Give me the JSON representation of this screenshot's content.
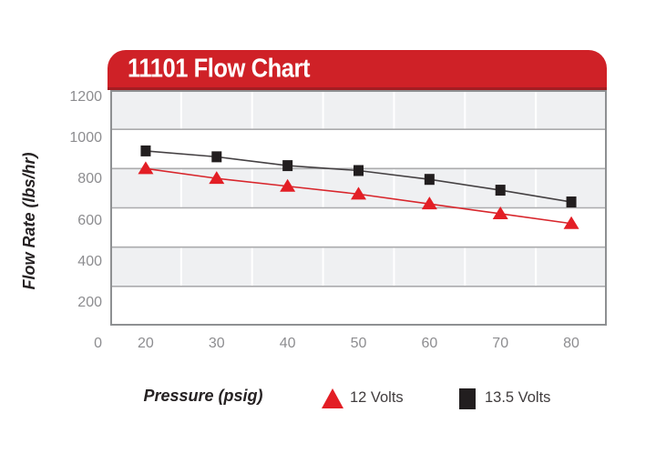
{
  "title_banner": {
    "text": "11101 Flow Chart",
    "bg_color": "#cf2127",
    "text_color": "#ffffff"
  },
  "legend": {
    "items": [
      {
        "label": "12 Volts",
        "marker": "triangle",
        "color": "#e31e25"
      },
      {
        "label": "13.5 Volts",
        "marker": "square",
        "color": "#221e1f"
      }
    ]
  },
  "chart_data": {
    "type": "line",
    "title": "11101 Flow Chart",
    "xlabel": "Pressure (psig)",
    "ylabel": "Flow Rate (lbs/hr)",
    "categories": [
      20,
      30,
      40,
      50,
      60,
      70,
      80
    ],
    "series": [
      {
        "name": "13.5 Volts",
        "marker": "square",
        "marker_color": "#221e1f",
        "line_color": "#454143",
        "values": [
          890,
          860,
          815,
          790,
          745,
          690,
          630
        ]
      },
      {
        "name": "12 Volts",
        "marker": "triangle",
        "marker_color": "#e31e25",
        "line_color": "#d8262c",
        "values": [
          800,
          750,
          710,
          670,
          620,
          570,
          520
        ]
      }
    ],
    "ylim": [
      0,
      1200
    ],
    "yticks": [
      0,
      200,
      400,
      600,
      800,
      1000,
      1200
    ],
    "xticks": [
      20,
      30,
      40,
      50,
      60,
      70,
      80
    ],
    "grid": {
      "h_gridline_interval": 200,
      "h_gridline_color": "#ababad",
      "v_gridlines": "category-boundaries",
      "v_gridline_color": "#ffffff",
      "band_ranges_gray": [
        [
          1000,
          1200
        ],
        [
          600,
          800
        ],
        [
          200,
          400
        ]
      ],
      "band_color": "#eff0f2",
      "border_color": "#8e9092"
    },
    "legend_position": "bottom"
  }
}
